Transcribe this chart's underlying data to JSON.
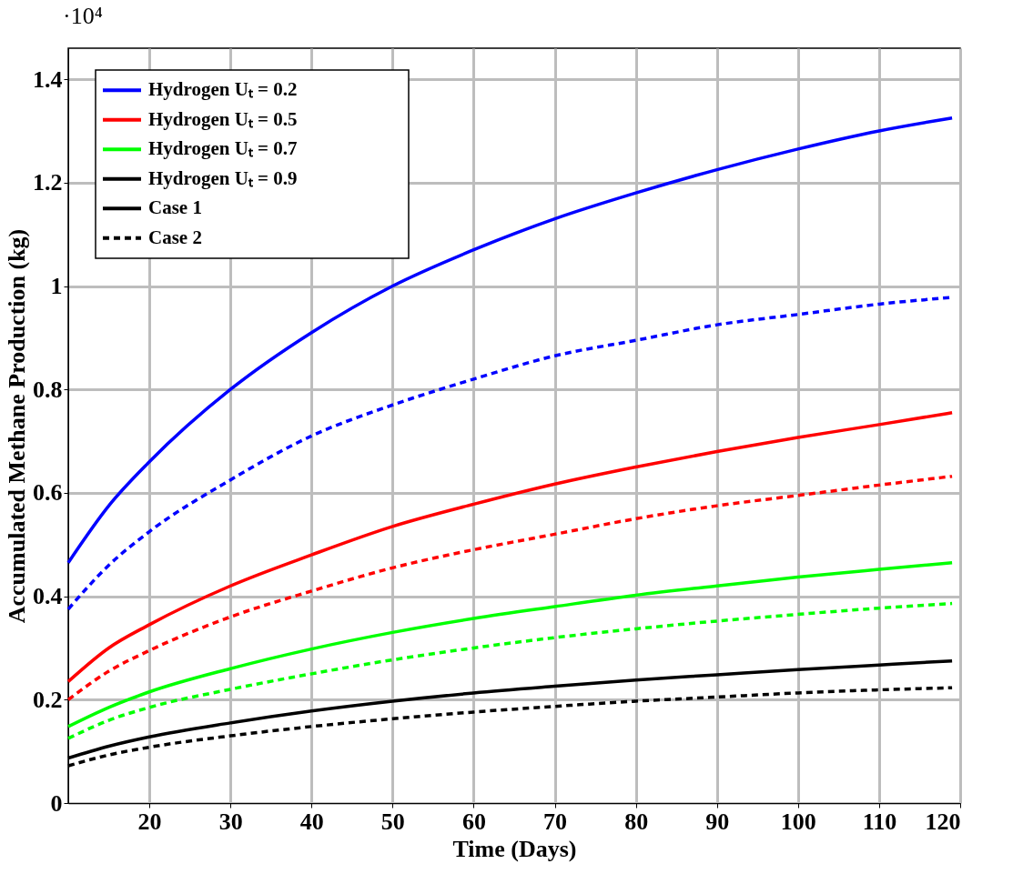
{
  "chart_data": {
    "type": "line",
    "xlabel": "Time (Days)",
    "ylabel": "Accumulated Methane Production (kg)",
    "x": [
      10,
      15,
      20,
      30,
      40,
      50,
      60,
      70,
      80,
      90,
      100,
      110,
      119
    ],
    "xlim": [
      10,
      120
    ],
    "xticks": [
      20,
      30,
      40,
      50,
      60,
      70,
      80,
      90,
      100,
      110,
      120
    ],
    "ylim": [
      0,
      1.46
    ],
    "yticks": [
      0,
      0.2,
      0.4,
      0.6,
      0.8,
      1,
      1.2,
      1.4
    ],
    "grid": true,
    "legend": "top left",
    "annotations": [
      "·10⁴",
      "Case 1"
    ],
    "series": [
      {
        "name": "Hydrogen Uₜ = 0.2",
        "color": "#0000ff",
        "line_style": "solid",
        "values": [
          0.465,
          0.575,
          0.66,
          0.8,
          0.91,
          1.0,
          1.07,
          1.13,
          1.18,
          1.225,
          1.265,
          1.3,
          1.325
        ]
      },
      {
        "name": "Hydrogen Uₜ = 0.5",
        "color": "#ff0000",
        "line_style": "solid",
        "values": [
          0.235,
          0.3,
          0.345,
          0.42,
          0.48,
          0.535,
          0.578,
          0.617,
          0.65,
          0.68,
          0.707,
          0.732,
          0.755
        ]
      },
      {
        "name": "Hydrogen Uₜ = 0.7",
        "color": "#00ff00",
        "line_style": "solid",
        "values": [
          0.148,
          0.185,
          0.215,
          0.26,
          0.298,
          0.33,
          0.357,
          0.38,
          0.402,
          0.42,
          0.437,
          0.452,
          0.465
        ]
      },
      {
        "name": "Hydrogen Uₜ = 0.9",
        "color": "#000000",
        "line_style": "solid",
        "values": [
          0.087,
          0.11,
          0.128,
          0.155,
          0.178,
          0.197,
          0.213,
          0.226,
          0.238,
          0.248,
          0.258,
          0.267,
          0.275
        ]
      },
      {
        "color": "#0000ff",
        "line_style": "dashed",
        "values": [
          0.375,
          0.46,
          0.525,
          0.625,
          0.71,
          0.77,
          0.82,
          0.865,
          0.895,
          0.925,
          0.945,
          0.965,
          0.978
        ]
      },
      {
        "color": "#ff0000",
        "line_style": "dashed",
        "values": [
          0.2,
          0.255,
          0.295,
          0.36,
          0.41,
          0.455,
          0.49,
          0.52,
          0.55,
          0.575,
          0.595,
          0.615,
          0.632
        ]
      },
      {
        "color": "#00ff00",
        "line_style": "dashed",
        "values": [
          0.125,
          0.16,
          0.185,
          0.22,
          0.25,
          0.277,
          0.3,
          0.32,
          0.337,
          0.352,
          0.365,
          0.377,
          0.386
        ]
      },
      {
        "name": "Case 2",
        "color": "#000000",
        "line_style": "dashed",
        "values": [
          0.072,
          0.093,
          0.108,
          0.13,
          0.148,
          0.163,
          0.176,
          0.187,
          0.197,
          0.205,
          0.213,
          0.219,
          0.223
        ]
      }
    ]
  }
}
